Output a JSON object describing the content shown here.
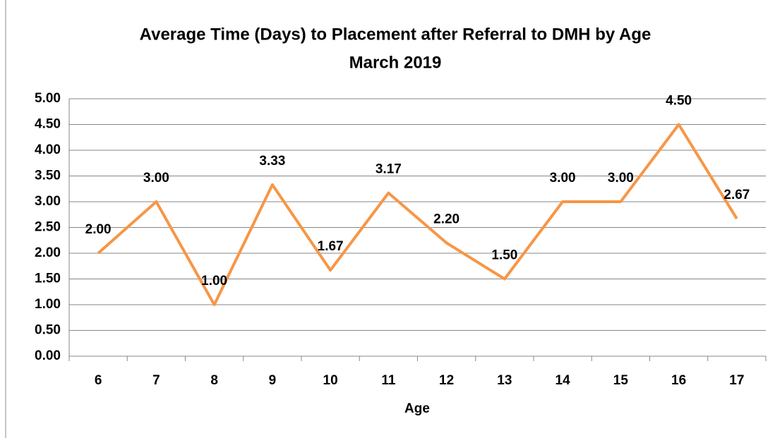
{
  "chart_data": {
    "type": "line",
    "title": "Average Time (Days) to Placement after Referral to DMH by Age",
    "subtitle": "March 2019",
    "x_label": "Age",
    "categories": [
      "6",
      "7",
      "8",
      "9",
      "10",
      "11",
      "12",
      "13",
      "14",
      "15",
      "16",
      "17"
    ],
    "series": [
      {
        "name": "Average Time (Days)",
        "color": "#f79646",
        "values": [
          2,
          3,
          1,
          3.33,
          1.67,
          3.17,
          2.2,
          1.5,
          3,
          3,
          4.5,
          2.67
        ],
        "value_labels": [
          "2.00",
          "3.00",
          "1.00",
          "3.33",
          "1.67",
          "3.17",
          "2.20",
          "1.50",
          "3.00",
          "3.00",
          "4.50",
          "2.67"
        ]
      }
    ],
    "ylim": [
      0,
      5
    ],
    "yticks": [
      {
        "value": 0,
        "label": "0.00"
      },
      {
        "value": 0.5,
        "label": "0.50"
      },
      {
        "value": 1,
        "label": "1.00"
      },
      {
        "value": 1.5,
        "label": "1.50"
      },
      {
        "value": 2,
        "label": "2.00"
      },
      {
        "value": 2.5,
        "label": "2.50"
      },
      {
        "value": 3,
        "label": "3.00"
      },
      {
        "value": 3.5,
        "label": "3.50"
      },
      {
        "value": 4,
        "label": "4.00"
      },
      {
        "value": 4.5,
        "label": "4.50"
      },
      {
        "value": 5,
        "label": "5.00"
      }
    ],
    "grid": true
  }
}
